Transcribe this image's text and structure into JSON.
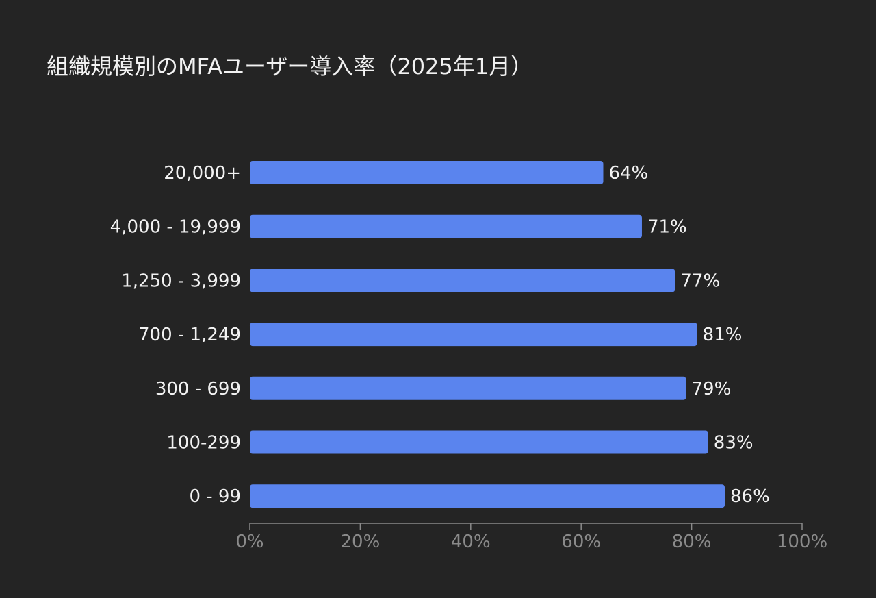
{
  "chart_data": {
    "type": "bar",
    "orientation": "horizontal",
    "title": "組織規模別のMFAユーザー導入率（2025年1月）",
    "categories": [
      "20,000+",
      "4,000 - 19,999",
      "1,250 - 3,999",
      "700 - 1,249",
      "300 - 699",
      "100-299",
      "0 - 99"
    ],
    "values": [
      64,
      71,
      77,
      81,
      79,
      83,
      86
    ],
    "data_labels": [
      "64%",
      "71%",
      "77%",
      "81%",
      "79%",
      "83%",
      "86%"
    ],
    "xlim": [
      0,
      100
    ],
    "x_ticks": [
      0,
      20,
      40,
      60,
      80,
      100
    ],
    "x_tick_labels": [
      "0%",
      "20%",
      "40%",
      "60%",
      "80%",
      "100%"
    ],
    "xlabel": "",
    "ylabel": "",
    "grid": false,
    "colors": {
      "bar": "#5A84EE",
      "background": "#242424",
      "text": "#f2f2f2",
      "axis": "#8a8a8a"
    }
  }
}
